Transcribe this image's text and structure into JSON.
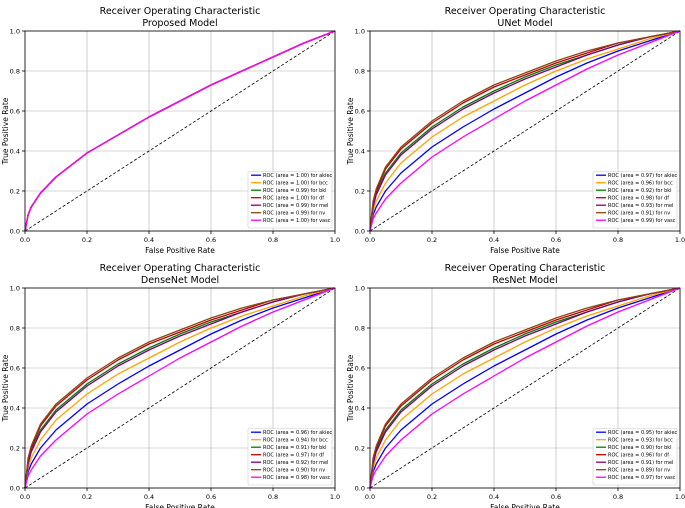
{
  "chart_data": [
    {
      "type": "line",
      "title": "Receiver Operating Characteristic",
      "subtitle": "Proposed Model",
      "xlabel": "False Positive Rate",
      "ylabel": "True Positive Rate",
      "xlim": [
        0,
        1
      ],
      "ylim": [
        0,
        1
      ],
      "xticks": [
        "0.0",
        "0.2",
        "0.4",
        "0.6",
        "0.8",
        "1.0"
      ],
      "yticks": [
        "0.0",
        "0.2",
        "0.4",
        "0.6",
        "0.8",
        "1.0"
      ],
      "grid": true,
      "legend": "bottom-right",
      "x": [
        0,
        0.01,
        0.02,
        0.05,
        0.1,
        0.2,
        0.3,
        0.4,
        0.5,
        0.6,
        0.7,
        0.8,
        0.9,
        1.0
      ],
      "series": [
        {
          "name": "ROC (area = 1.00) for akiec",
          "color": "#0000ff",
          "values": [
            0,
            0.08,
            0.12,
            0.19,
            0.27,
            0.39,
            0.48,
            0.57,
            0.65,
            0.73,
            0.8,
            0.87,
            0.94,
            1.0
          ]
        },
        {
          "name": "ROC (area = 1.00) for bcc",
          "color": "#ffa500",
          "values": [
            0,
            0.08,
            0.12,
            0.19,
            0.27,
            0.39,
            0.48,
            0.57,
            0.65,
            0.73,
            0.8,
            0.87,
            0.94,
            1.0
          ]
        },
        {
          "name": "ROC (area = 0.99) for bkl",
          "color": "#008000",
          "values": [
            0,
            0.08,
            0.12,
            0.19,
            0.27,
            0.39,
            0.48,
            0.57,
            0.65,
            0.73,
            0.8,
            0.87,
            0.94,
            1.0
          ]
        },
        {
          "name": "ROC (area = 1.00) for df",
          "color": "#c00000",
          "values": [
            0,
            0.08,
            0.12,
            0.19,
            0.27,
            0.39,
            0.48,
            0.57,
            0.65,
            0.73,
            0.8,
            0.87,
            0.94,
            1.0
          ]
        },
        {
          "name": "ROC (area = 0.99) for mel",
          "color": "#800080",
          "values": [
            0,
            0.08,
            0.12,
            0.19,
            0.27,
            0.39,
            0.48,
            0.57,
            0.65,
            0.73,
            0.8,
            0.87,
            0.94,
            1.0
          ]
        },
        {
          "name": "ROC (area = 0.99) for nv",
          "color": "#8b4513",
          "values": [
            0,
            0.08,
            0.12,
            0.19,
            0.27,
            0.39,
            0.48,
            0.57,
            0.65,
            0.73,
            0.8,
            0.87,
            0.94,
            1.0
          ]
        },
        {
          "name": "ROC (area = 1.00) for vasc",
          "color": "#ff00ff",
          "values": [
            0,
            0.08,
            0.12,
            0.19,
            0.27,
            0.39,
            0.48,
            0.57,
            0.65,
            0.73,
            0.8,
            0.87,
            0.94,
            1.0
          ]
        }
      ]
    },
    {
      "type": "line",
      "title": "Receiver Operating Characteristic",
      "subtitle": "UNet Model",
      "xlabel": "False Positive Rate",
      "ylabel": "True Positive Rate",
      "xlim": [
        0,
        1
      ],
      "ylim": [
        0,
        1
      ],
      "xticks": [
        "0.0",
        "0.2",
        "0.4",
        "0.6",
        "0.8",
        "1.0"
      ],
      "yticks": [
        "0.0",
        "0.2",
        "0.4",
        "0.6",
        "0.8",
        "1.0"
      ],
      "grid": true,
      "legend": "bottom-right",
      "x": [
        0,
        0.01,
        0.02,
        0.05,
        0.1,
        0.2,
        0.3,
        0.4,
        0.5,
        0.6,
        0.7,
        0.8,
        0.9,
        1.0
      ],
      "series": [
        {
          "name": "ROC (area = 0.97) for akiec",
          "color": "#0000ff",
          "values": [
            0,
            0.08,
            0.12,
            0.2,
            0.29,
            0.42,
            0.52,
            0.61,
            0.69,
            0.77,
            0.84,
            0.9,
            0.95,
            1.0
          ]
        },
        {
          "name": "ROC (area = 0.96) for bcc",
          "color": "#ffa500",
          "values": [
            0,
            0.1,
            0.15,
            0.24,
            0.34,
            0.47,
            0.57,
            0.65,
            0.73,
            0.8,
            0.86,
            0.91,
            0.96,
            1.0
          ]
        },
        {
          "name": "ROC (area = 0.92) for bkl",
          "color": "#008000",
          "values": [
            0,
            0.13,
            0.19,
            0.29,
            0.39,
            0.52,
            0.62,
            0.7,
            0.77,
            0.83,
            0.88,
            0.93,
            0.97,
            1.0
          ]
        },
        {
          "name": "ROC (area = 0.98) for df",
          "color": "#c00000",
          "values": [
            0,
            0.14,
            0.2,
            0.31,
            0.41,
            0.54,
            0.64,
            0.72,
            0.78,
            0.84,
            0.89,
            0.94,
            0.97,
            1.0
          ]
        },
        {
          "name": "ROC (area = 0.93) for mel",
          "color": "#800080",
          "values": [
            0,
            0.12,
            0.18,
            0.28,
            0.38,
            0.51,
            0.61,
            0.69,
            0.76,
            0.82,
            0.88,
            0.93,
            0.97,
            1.0
          ]
        },
        {
          "name": "ROC (area = 0.91) for nv",
          "color": "#8b4513",
          "values": [
            0,
            0.15,
            0.21,
            0.32,
            0.42,
            0.55,
            0.65,
            0.73,
            0.79,
            0.85,
            0.9,
            0.94,
            0.97,
            1.0
          ]
        },
        {
          "name": "ROC (area = 0.99) for vasc",
          "color": "#ff00ff",
          "values": [
            0,
            0.06,
            0.09,
            0.16,
            0.24,
            0.37,
            0.47,
            0.56,
            0.65,
            0.73,
            0.81,
            0.88,
            0.94,
            1.0
          ]
        }
      ]
    },
    {
      "type": "line",
      "title": "Receiver Operating Characteristic",
      "subtitle": "DenseNet Model",
      "xlabel": "False Positive Rate",
      "ylabel": "True Positive Rate",
      "xlim": [
        0,
        1
      ],
      "ylim": [
        0,
        1
      ],
      "xticks": [
        "0.0",
        "0.2",
        "0.4",
        "0.6",
        "0.8",
        "1.0"
      ],
      "yticks": [
        "0.0",
        "0.2",
        "0.4",
        "0.6",
        "0.8",
        "1.0"
      ],
      "grid": true,
      "legend": "bottom-right",
      "x": [
        0,
        0.01,
        0.02,
        0.05,
        0.1,
        0.2,
        0.3,
        0.4,
        0.5,
        0.6,
        0.7,
        0.8,
        0.9,
        1.0
      ],
      "series": [
        {
          "name": "ROC (area = 0.96) for akiec",
          "color": "#0000ff",
          "values": [
            0,
            0.08,
            0.12,
            0.2,
            0.29,
            0.42,
            0.52,
            0.61,
            0.69,
            0.77,
            0.84,
            0.9,
            0.95,
            1.0
          ]
        },
        {
          "name": "ROC (area = 0.94) for bcc",
          "color": "#ffa500",
          "values": [
            0,
            0.1,
            0.15,
            0.24,
            0.34,
            0.47,
            0.57,
            0.65,
            0.73,
            0.8,
            0.86,
            0.91,
            0.96,
            1.0
          ]
        },
        {
          "name": "ROC (area = 0.91) for bkl",
          "color": "#008000",
          "values": [
            0,
            0.13,
            0.19,
            0.29,
            0.39,
            0.52,
            0.62,
            0.7,
            0.77,
            0.83,
            0.88,
            0.93,
            0.97,
            1.0
          ]
        },
        {
          "name": "ROC (area = 0.97) for df",
          "color": "#c00000",
          "values": [
            0,
            0.14,
            0.2,
            0.31,
            0.41,
            0.54,
            0.64,
            0.72,
            0.78,
            0.84,
            0.89,
            0.94,
            0.97,
            1.0
          ]
        },
        {
          "name": "ROC (area = 0.92) for mel",
          "color": "#800080",
          "values": [
            0,
            0.12,
            0.18,
            0.28,
            0.38,
            0.51,
            0.61,
            0.69,
            0.76,
            0.82,
            0.88,
            0.93,
            0.97,
            1.0
          ]
        },
        {
          "name": "ROC (area = 0.90) for nv",
          "color": "#8b4513",
          "values": [
            0,
            0.15,
            0.21,
            0.32,
            0.42,
            0.55,
            0.65,
            0.73,
            0.79,
            0.85,
            0.9,
            0.94,
            0.97,
            1.0
          ]
        },
        {
          "name": "ROC (area = 0.98) for vasc",
          "color": "#ff00ff",
          "values": [
            0,
            0.06,
            0.09,
            0.16,
            0.24,
            0.37,
            0.47,
            0.56,
            0.65,
            0.73,
            0.81,
            0.88,
            0.94,
            1.0
          ]
        }
      ]
    },
    {
      "type": "line",
      "title": "Receiver Operating Characteristic",
      "subtitle": "ResNet Model",
      "xlabel": "False Positive Rate",
      "ylabel": "True Positive Rate",
      "xlim": [
        0,
        1
      ],
      "ylim": [
        0,
        1
      ],
      "xticks": [
        "0.0",
        "0.2",
        "0.4",
        "0.6",
        "0.8",
        "1.0"
      ],
      "yticks": [
        "0.0",
        "0.2",
        "0.4",
        "0.6",
        "0.8",
        "1.0"
      ],
      "grid": true,
      "legend": "bottom-right",
      "x": [
        0,
        0.01,
        0.02,
        0.05,
        0.1,
        0.2,
        0.3,
        0.4,
        0.5,
        0.6,
        0.7,
        0.8,
        0.9,
        1.0
      ],
      "series": [
        {
          "name": "ROC (area = 0.95) for akiec",
          "color": "#0000ff",
          "values": [
            0,
            0.08,
            0.12,
            0.2,
            0.29,
            0.42,
            0.52,
            0.61,
            0.69,
            0.77,
            0.84,
            0.9,
            0.95,
            1.0
          ]
        },
        {
          "name": "ROC (area = 0.93) for bcc",
          "color": "#ffa500",
          "values": [
            0,
            0.1,
            0.15,
            0.24,
            0.34,
            0.47,
            0.57,
            0.65,
            0.73,
            0.8,
            0.86,
            0.91,
            0.96,
            1.0
          ]
        },
        {
          "name": "ROC (area = 0.90) for bkl",
          "color": "#008000",
          "values": [
            0,
            0.13,
            0.19,
            0.29,
            0.39,
            0.52,
            0.62,
            0.7,
            0.77,
            0.83,
            0.88,
            0.93,
            0.97,
            1.0
          ]
        },
        {
          "name": "ROC (area = 0.96) for df",
          "color": "#c00000",
          "values": [
            0,
            0.14,
            0.2,
            0.31,
            0.41,
            0.54,
            0.64,
            0.72,
            0.78,
            0.84,
            0.89,
            0.94,
            0.97,
            1.0
          ]
        },
        {
          "name": "ROC (area = 0.91) for mel",
          "color": "#800080",
          "values": [
            0,
            0.12,
            0.18,
            0.28,
            0.38,
            0.51,
            0.61,
            0.69,
            0.76,
            0.82,
            0.88,
            0.93,
            0.97,
            1.0
          ]
        },
        {
          "name": "ROC (area = 0.89) for nv",
          "color": "#8b4513",
          "values": [
            0,
            0.15,
            0.21,
            0.32,
            0.42,
            0.55,
            0.65,
            0.73,
            0.79,
            0.85,
            0.9,
            0.94,
            0.97,
            1.0
          ]
        },
        {
          "name": "ROC (area = 0.97) for vasc",
          "color": "#ff00ff",
          "values": [
            0,
            0.06,
            0.09,
            0.16,
            0.24,
            0.37,
            0.47,
            0.56,
            0.65,
            0.73,
            0.81,
            0.88,
            0.94,
            1.0
          ]
        }
      ]
    }
  ]
}
